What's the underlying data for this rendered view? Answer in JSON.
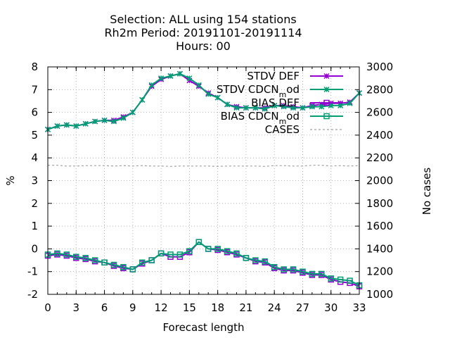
{
  "chart_data": {
    "type": "line",
    "title_lines": [
      "Selection: ALL using   154 stations",
      "Rh2m   Period: 20191101-20191114",
      "Hours:  00"
    ],
    "xlabel": "Forecast length",
    "ylabel": "%",
    "y2label": "No cases",
    "xlim": [
      0,
      33
    ],
    "ylim": [
      -2,
      8
    ],
    "y2lim": [
      1000,
      3000
    ],
    "x_ticks": [
      "0",
      "3",
      "6",
      "9",
      "12",
      "15",
      "18",
      "21",
      "24",
      "27",
      "30",
      "33"
    ],
    "y_ticks": [
      "-2",
      "-1",
      "0",
      "1",
      "2",
      "3",
      "4",
      "5",
      "6",
      "7",
      "8"
    ],
    "y2_ticks": [
      "1000",
      "1200",
      "1400",
      "1600",
      "1800",
      "2000",
      "2200",
      "2400",
      "2600",
      "2800",
      "3000"
    ],
    "grid": true,
    "legend_position": "top-right",
    "x": [
      0,
      1,
      2,
      3,
      4,
      5,
      6,
      7,
      8,
      9,
      10,
      11,
      12,
      13,
      14,
      15,
      16,
      17,
      18,
      19,
      20,
      21,
      22,
      23,
      24,
      25,
      26,
      27,
      28,
      29,
      30,
      31,
      32,
      33
    ],
    "series": [
      {
        "name": "STDV DEF",
        "axis": "y",
        "color": "#9400d3",
        "marker": "x",
        "values": [
          5.25,
          5.4,
          5.45,
          5.4,
          5.5,
          5.6,
          5.65,
          5.65,
          5.8,
          6.0,
          6.55,
          7.15,
          7.45,
          7.6,
          7.7,
          7.4,
          7.15,
          6.85,
          6.65,
          6.35,
          6.25,
          6.2,
          6.2,
          6.2,
          6.3,
          6.3,
          6.25,
          6.2,
          6.3,
          6.35,
          6.4,
          6.4,
          6.45,
          6.85
        ]
      },
      {
        "name": "STDV CDCN_mod",
        "axis": "y",
        "color": "#009e73",
        "marker": "x",
        "values": [
          5.25,
          5.4,
          5.45,
          5.4,
          5.5,
          5.6,
          5.65,
          5.6,
          5.75,
          6.0,
          6.55,
          7.2,
          7.5,
          7.6,
          7.7,
          7.5,
          7.2,
          6.8,
          6.65,
          6.35,
          6.2,
          6.2,
          6.2,
          6.15,
          6.3,
          6.25,
          6.2,
          6.2,
          6.25,
          6.25,
          6.3,
          6.3,
          6.4,
          6.85
        ]
      },
      {
        "name": "BIAS DEF",
        "axis": "y",
        "color": "#9400d3",
        "marker": "square",
        "values": [
          -0.3,
          -0.25,
          -0.3,
          -0.4,
          -0.45,
          -0.55,
          -0.6,
          -0.75,
          -0.85,
          -0.9,
          -0.65,
          -0.5,
          -0.2,
          -0.35,
          -0.35,
          -0.15,
          0.3,
          0.0,
          -0.05,
          -0.15,
          -0.25,
          -0.4,
          -0.55,
          -0.6,
          -0.85,
          -0.95,
          -0.95,
          -1.05,
          -1.15,
          -1.15,
          -1.35,
          -1.45,
          -1.5,
          -1.65
        ]
      },
      {
        "name": "BIAS CDCN_mod",
        "axis": "y",
        "color": "#009e73",
        "marker": "square",
        "values": [
          -0.25,
          -0.2,
          -0.25,
          -0.35,
          -0.4,
          -0.5,
          -0.6,
          -0.7,
          -0.8,
          -0.9,
          -0.6,
          -0.5,
          -0.2,
          -0.25,
          -0.25,
          -0.1,
          0.3,
          0.0,
          0.0,
          -0.1,
          -0.2,
          -0.4,
          -0.5,
          -0.55,
          -0.8,
          -0.9,
          -0.9,
          -1.0,
          -1.1,
          -1.1,
          -1.3,
          -1.35,
          -1.4,
          -1.6
        ]
      },
      {
        "name": "CASES",
        "axis": "y2",
        "color": "#a0a0a0",
        "marker": "none",
        "values": [
          2135,
          2135,
          2128,
          2128,
          2132,
          2132,
          2132,
          2128,
          2132,
          2128,
          2132,
          2128,
          2128,
          2125,
          2128,
          2128,
          2128,
          2128,
          2125,
          2128,
          2128,
          2128,
          2128,
          2125,
          2132,
          2132,
          2128,
          2128,
          2135,
          2135,
          2128,
          2132,
          2128,
          2132
        ]
      }
    ],
    "legend_entries": [
      {
        "text": "STDV DEF",
        "sub": ""
      },
      {
        "text": "STDV CDCN",
        "sub": "m",
        "tail": "od"
      },
      {
        "text": "BIAS DEF",
        "sub": ""
      },
      {
        "text": "BIAS CDCN",
        "sub": "m",
        "tail": "od"
      },
      {
        "text": "CASES",
        "sub": ""
      }
    ]
  }
}
